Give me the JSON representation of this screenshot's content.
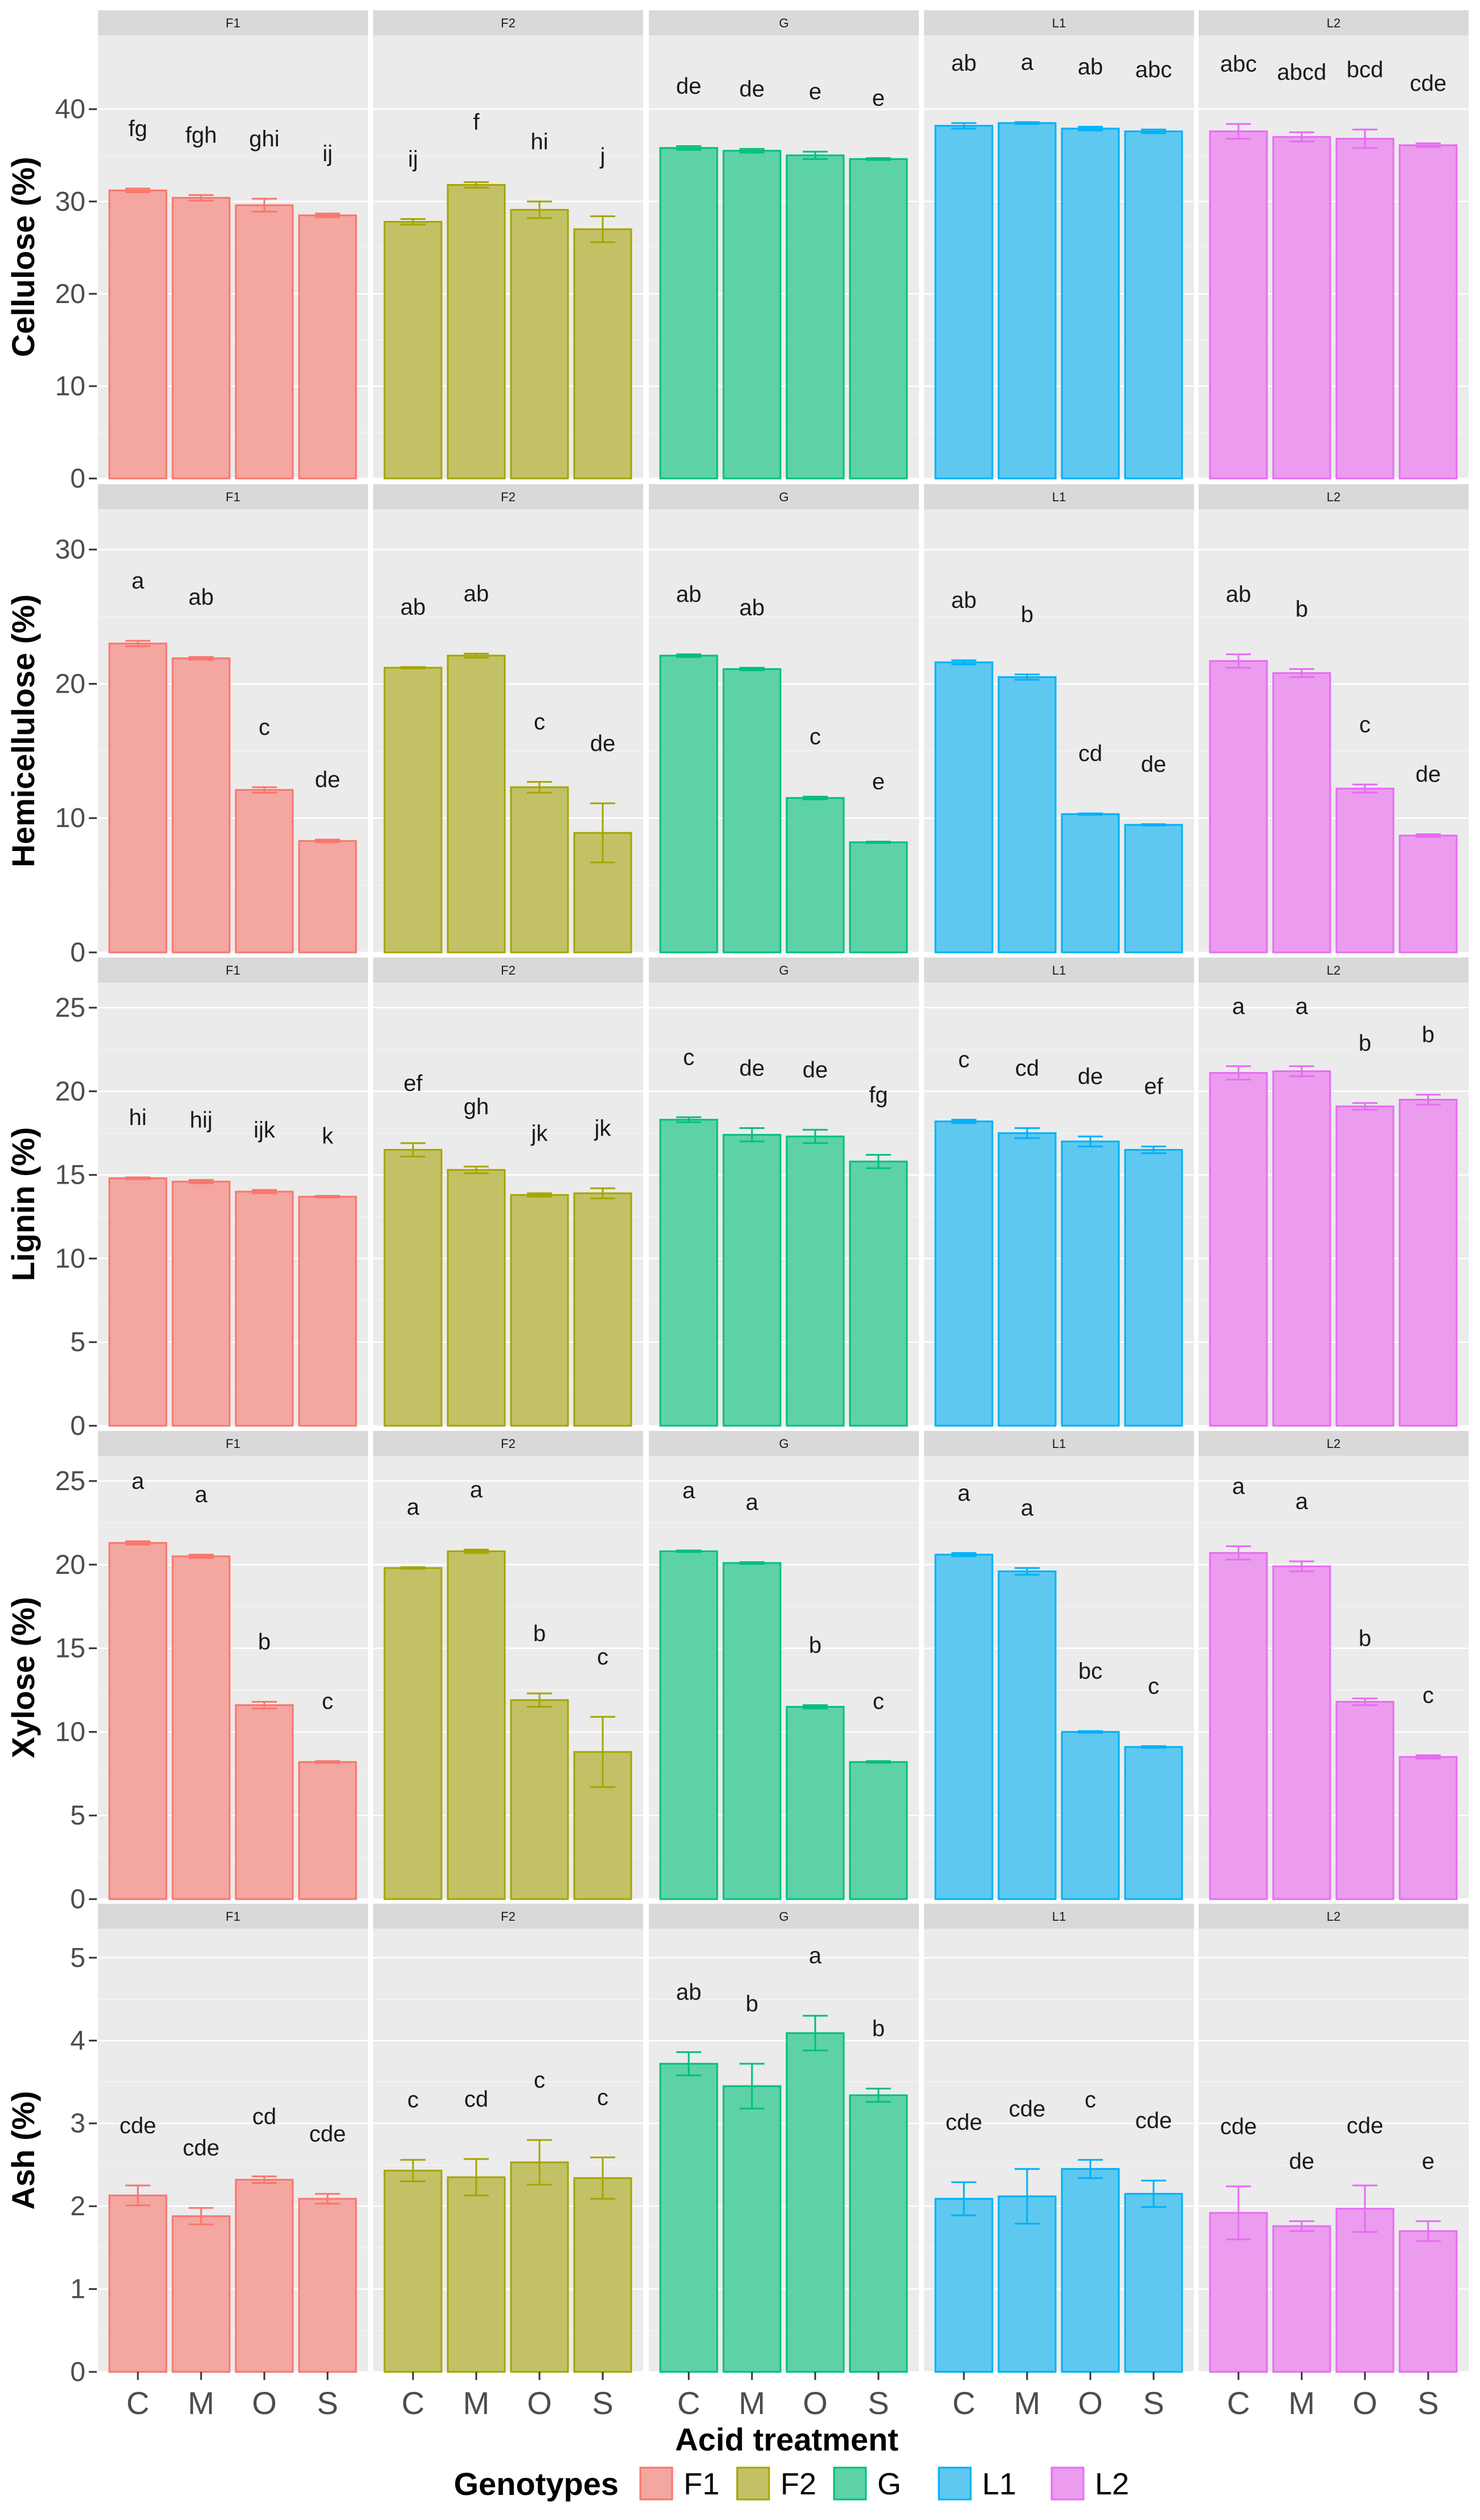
{
  "chart_data": {
    "type": "bar",
    "layout": "facet-grid",
    "xlabel": "Acid treatment",
    "categories": [
      "C",
      "M",
      "O",
      "S"
    ],
    "genotypes": [
      "F1",
      "F2",
      "G",
      "L1",
      "L2"
    ],
    "colors": {
      "F1": {
        "fill": "#F4A6A0",
        "stroke": "#F8766D"
      },
      "F2": {
        "fill": "#C3C166",
        "stroke": "#A3A500"
      },
      "G": {
        "fill": "#5DD2A6",
        "stroke": "#00BF7D"
      },
      "L1": {
        "fill": "#5EC8F0",
        "stroke": "#00B0F6"
      },
      "L2": {
        "fill": "#EB9CEE",
        "stroke": "#E76BF3"
      }
    },
    "legend": {
      "title": "Genotypes",
      "position": "bottom",
      "items": [
        "F1",
        "F2",
        "G",
        "L1",
        "L2"
      ]
    },
    "rows": [
      {
        "ylabel": "Cellulose (%)",
        "ylim": [
          0,
          48
        ],
        "yticks": [
          "0",
          "10",
          "20",
          "30",
          "40"
        ],
        "panels": [
          {
            "genotype": "F1",
            "values": [
              31.2,
              30.4,
              29.6,
              28.5
            ],
            "errors": [
              0.2,
              0.3,
              0.7,
              0.2
            ],
            "letters": [
              "fg",
              "fgh",
              "ghi",
              "ij"
            ]
          },
          {
            "genotype": "F2",
            "values": [
              27.8,
              31.8,
              29.1,
              27.0
            ],
            "errors": [
              0.3,
              0.3,
              0.9,
              1.4
            ],
            "letters": [
              "ij",
              "f",
              "hi",
              "j"
            ]
          },
          {
            "genotype": "G",
            "values": [
              35.8,
              35.5,
              35.0,
              34.6
            ],
            "errors": [
              0.2,
              0.2,
              0.4,
              0.1
            ],
            "letters": [
              "de",
              "de",
              "e",
              "e"
            ]
          },
          {
            "genotype": "L1",
            "values": [
              38.2,
              38.5,
              37.9,
              37.6
            ],
            "errors": [
              0.3,
              0.1,
              0.2,
              0.2
            ],
            "letters": [
              "ab",
              "a",
              "ab",
              "abc"
            ]
          },
          {
            "genotype": "L2",
            "values": [
              37.6,
              37.0,
              36.8,
              36.1
            ],
            "errors": [
              0.8,
              0.5,
              1.0,
              0.2
            ],
            "letters": [
              "abc",
              "abcd",
              "bcd",
              "cde"
            ]
          }
        ]
      },
      {
        "ylabel": "Hemicellulose (%)",
        "ylim": [
          0,
          33
        ],
        "yticks": [
          "0",
          "10",
          "20",
          "30"
        ],
        "panels": [
          {
            "genotype": "F1",
            "values": [
              23.0,
              21.9,
              12.1,
              8.3
            ],
            "errors": [
              0.2,
              0.1,
              0.2,
              0.1
            ],
            "letters": [
              "a",
              "ab",
              "c",
              "de"
            ]
          },
          {
            "genotype": "F2",
            "values": [
              21.2,
              22.1,
              12.3,
              8.9
            ],
            "errors": [
              0.05,
              0.15,
              0.4,
              2.2
            ],
            "letters": [
              "ab",
              "ab",
              "c",
              "de"
            ]
          },
          {
            "genotype": "G",
            "values": [
              22.1,
              21.1,
              11.5,
              8.2
            ],
            "errors": [
              0.1,
              0.1,
              0.1,
              0.05
            ],
            "letters": [
              "ab",
              "ab",
              "c",
              "e"
            ]
          },
          {
            "genotype": "L1",
            "values": [
              21.6,
              20.5,
              10.3,
              9.5
            ],
            "errors": [
              0.15,
              0.2,
              0.05,
              0.05
            ],
            "letters": [
              "ab",
              "b",
              "cd",
              "de"
            ]
          },
          {
            "genotype": "L2",
            "values": [
              21.7,
              20.8,
              12.2,
              8.7
            ],
            "errors": [
              0.5,
              0.3,
              0.3,
              0.1
            ],
            "letters": [
              "ab",
              "b",
              "c",
              "de"
            ]
          }
        ]
      },
      {
        "ylabel": "Lignin (%)",
        "ylim": [
          0,
          26.5
        ],
        "yticks": [
          "0",
          "5",
          "10",
          "15",
          "20",
          "25"
        ],
        "panels": [
          {
            "genotype": "F1",
            "values": [
              14.8,
              14.6,
              14.0,
              13.7
            ],
            "errors": [
              0.05,
              0.1,
              0.1,
              0.05
            ],
            "letters": [
              "hi",
              "hij",
              "ijk",
              "k"
            ]
          },
          {
            "genotype": "F2",
            "values": [
              16.5,
              15.3,
              13.8,
              13.9
            ],
            "errors": [
              0.4,
              0.2,
              0.1,
              0.3
            ],
            "letters": [
              "ef",
              "gh",
              "jk",
              "jk"
            ]
          },
          {
            "genotype": "G",
            "values": [
              18.3,
              17.4,
              17.3,
              15.8
            ],
            "errors": [
              0.15,
              0.4,
              0.4,
              0.4
            ],
            "letters": [
              "c",
              "de",
              "de",
              "fg"
            ]
          },
          {
            "genotype": "L1",
            "values": [
              18.2,
              17.5,
              17.0,
              16.5
            ],
            "errors": [
              0.1,
              0.3,
              0.3,
              0.2
            ],
            "letters": [
              "c",
              "cd",
              "de",
              "ef"
            ]
          },
          {
            "genotype": "L2",
            "values": [
              21.1,
              21.2,
              19.1,
              19.5
            ],
            "errors": [
              0.4,
              0.3,
              0.2,
              0.3
            ],
            "letters": [
              "a",
              "a",
              "b",
              "b"
            ]
          }
        ]
      },
      {
        "ylabel": "Xylose (%)",
        "ylim": [
          0,
          26.5
        ],
        "yticks": [
          "0",
          "5",
          "10",
          "15",
          "20",
          "25"
        ],
        "panels": [
          {
            "genotype": "F1",
            "values": [
              21.3,
              20.5,
              11.6,
              8.2
            ],
            "errors": [
              0.1,
              0.1,
              0.2,
              0.05
            ],
            "letters": [
              "a",
              "a",
              "b",
              "c"
            ]
          },
          {
            "genotype": "F2",
            "values": [
              19.8,
              20.8,
              11.9,
              8.8
            ],
            "errors": [
              0.05,
              0.1,
              0.4,
              2.1
            ],
            "letters": [
              "a",
              "a",
              "b",
              "c"
            ]
          },
          {
            "genotype": "G",
            "values": [
              20.8,
              20.1,
              11.5,
              8.2
            ],
            "errors": [
              0.05,
              0.05,
              0.1,
              0.05
            ],
            "letters": [
              "a",
              "a",
              "b",
              "c"
            ]
          },
          {
            "genotype": "L1",
            "values": [
              20.6,
              19.6,
              10.0,
              9.1
            ],
            "errors": [
              0.1,
              0.2,
              0.05,
              0.05
            ],
            "letters": [
              "a",
              "a",
              "bc",
              "c"
            ]
          },
          {
            "genotype": "L2",
            "values": [
              20.7,
              19.9,
              11.8,
              8.5
            ],
            "errors": [
              0.4,
              0.3,
              0.2,
              0.1
            ],
            "letters": [
              "a",
              "a",
              "b",
              "c"
            ]
          }
        ]
      },
      {
        "ylabel": "Ash (%)",
        "ylim": [
          0,
          5.35
        ],
        "yticks": [
          "0",
          "1",
          "2",
          "3",
          "4",
          "5"
        ],
        "panels": [
          {
            "genotype": "F1",
            "values": [
              2.13,
              1.88,
              2.32,
              2.09
            ],
            "errors": [
              0.12,
              0.1,
              0.04,
              0.06
            ],
            "letters": [
              "cde",
              "cde",
              "cd",
              "cde"
            ]
          },
          {
            "genotype": "F2",
            "values": [
              2.43,
              2.35,
              2.53,
              2.34
            ],
            "errors": [
              0.13,
              0.22,
              0.27,
              0.25
            ],
            "letters": [
              "c",
              "cd",
              "c",
              "c"
            ]
          },
          {
            "genotype": "G",
            "values": [
              3.72,
              3.45,
              4.09,
              3.34
            ],
            "errors": [
              0.14,
              0.27,
              0.21,
              0.08
            ],
            "letters": [
              "ab",
              "b",
              "a",
              "b"
            ]
          },
          {
            "genotype": "L1",
            "values": [
              2.09,
              2.12,
              2.45,
              2.15
            ],
            "errors": [
              0.2,
              0.33,
              0.11,
              0.16
            ],
            "letters": [
              "cde",
              "cde",
              "c",
              "cde"
            ]
          },
          {
            "genotype": "L2",
            "values": [
              1.92,
              1.76,
              1.97,
              1.7
            ],
            "errors": [
              0.32,
              0.06,
              0.28,
              0.12
            ],
            "letters": [
              "cde",
              "de",
              "cde",
              "e"
            ]
          }
        ]
      }
    ]
  }
}
